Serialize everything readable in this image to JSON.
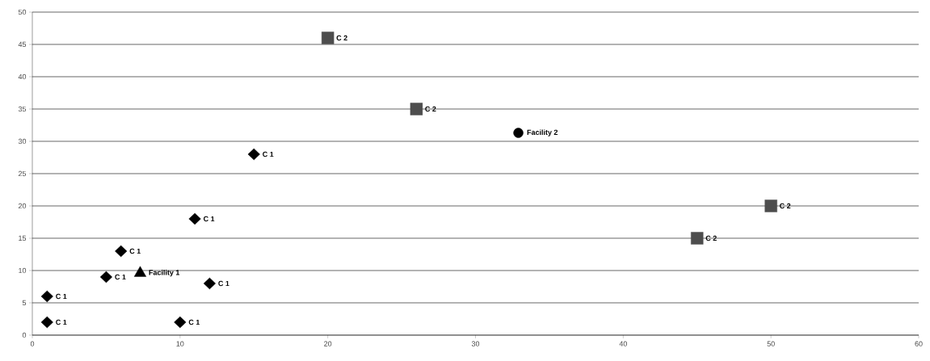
{
  "chart_data": {
    "type": "scatter",
    "xlim": [
      0,
      60
    ],
    "ylim": [
      0,
      50
    ],
    "xticks": [
      0,
      10,
      20,
      30,
      40,
      50,
      60
    ],
    "yticks": [
      0,
      5,
      10,
      15,
      20,
      25,
      30,
      35,
      40,
      45,
      50
    ],
    "grid": "y",
    "series": [
      {
        "name": "C 1",
        "color": "#000000",
        "marker": "diamond",
        "x": [
          1,
          1,
          5,
          6,
          10,
          12,
          11,
          15
        ],
        "values": [
          2,
          6,
          9,
          13,
          2,
          8,
          18,
          28
        ]
      },
      {
        "name": "C 2",
        "color": "#4d4d4d",
        "marker": "square",
        "x": [
          20,
          26,
          45,
          50
        ],
        "values": [
          46,
          35,
          15,
          20
        ]
      },
      {
        "name": "Facility 1",
        "color": "#000000",
        "marker": "triangle",
        "x": [
          7.3
        ],
        "values": [
          9.6
        ]
      },
      {
        "name": "Facility 2",
        "color": "#000000",
        "marker": "circle",
        "x": [
          32.9
        ],
        "values": [
          31.3
        ]
      }
    ]
  }
}
